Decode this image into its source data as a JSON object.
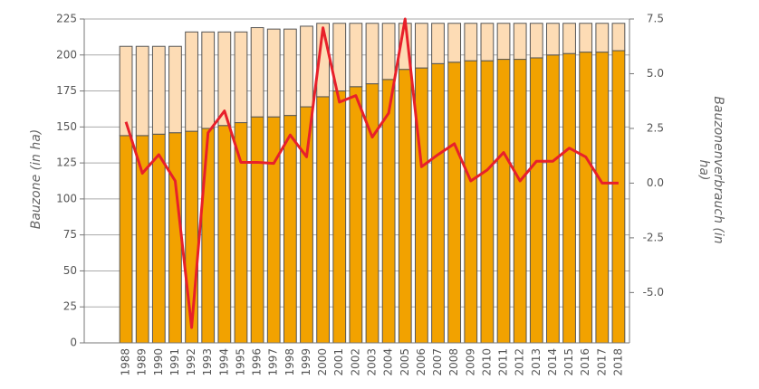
{
  "chart_data": {
    "type": "bar",
    "stacked": true,
    "ylabel": "Bauzone (in ha)",
    "y2label": "Bauzonenverbrauch (in ha)",
    "categories": [
      "1988",
      "1989",
      "1990",
      "1991",
      "1992",
      "1993",
      "1994",
      "1995",
      "1996",
      "1997",
      "1998",
      "1999",
      "2000",
      "2001",
      "2002",
      "2003",
      "2004",
      "2005",
      "2006",
      "2007",
      "2008",
      "2009",
      "2010",
      "2011",
      "2012",
      "2013",
      "2014",
      "2015",
      "2016",
      "2017",
      "2018"
    ],
    "series": [
      {
        "type": "bar",
        "color": "#f2a200",
        "values": [
          144,
          144,
          145,
          146,
          147,
          149,
          151,
          153,
          157,
          157,
          158,
          164,
          171,
          175,
          178,
          180,
          183,
          190,
          191,
          194,
          195,
          196,
          196,
          197,
          197,
          198,
          200,
          201,
          202,
          202,
          203
        ]
      },
      {
        "type": "bar",
        "color": "#fddcb5",
        "values": [
          62,
          62,
          61,
          60,
          69,
          67,
          65,
          63,
          62,
          61,
          60,
          56,
          51,
          47,
          44,
          42,
          39,
          32,
          31,
          28,
          27,
          26,
          26,
          25,
          25,
          24,
          22,
          21,
          20,
          20,
          19
        ]
      },
      {
        "type": "line",
        "axis": "y2",
        "color": "#e8202a",
        "values": [
          2.8,
          0.45,
          1.3,
          0.1,
          -6.6,
          2.3,
          3.3,
          0.95,
          0.95,
          0.9,
          2.2,
          1.2,
          7.1,
          3.7,
          4.0,
          2.1,
          3.2,
          7.5,
          0.75,
          1.3,
          1.8,
          0.1,
          0.6,
          1.4,
          0.1,
          1.0,
          1.0,
          1.6,
          1.2,
          0.0,
          0.0
        ]
      }
    ],
    "ylim": [
      0,
      225
    ],
    "yticks": [
      0,
      25,
      50,
      75,
      100,
      125,
      150,
      175,
      200,
      225
    ],
    "y2lim": [
      -7.3,
      7.5
    ],
    "y2ticks": [
      {
        "value": 7.5,
        "label": "7.5"
      },
      {
        "value": 5,
        "label": "5.0"
      },
      2.5,
      {
        "value": 0,
        "label": "0.0"
      },
      -2.5,
      {
        "value": -5,
        "label": "-5.0"
      }
    ],
    "grid": true,
    "bar_edge": "#555555"
  }
}
